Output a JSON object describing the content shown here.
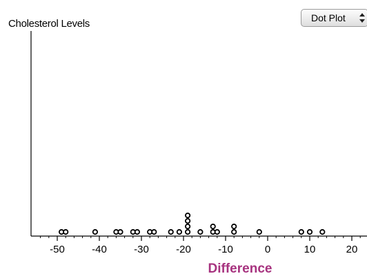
{
  "header": {
    "title": "Cholesterol Levels",
    "plot_type_select": "Dot Plot"
  },
  "chart_data": {
    "type": "dot",
    "title": "Cholesterol Levels",
    "xlabel": "Difference",
    "ylabel": "",
    "xlim": [
      -55,
      23
    ],
    "xticks": [
      -50,
      -40,
      -30,
      -20,
      -10,
      0,
      10,
      20
    ],
    "xticklabels": [
      "-50",
      "-40",
      "-30",
      "-20",
      "-10",
      "0",
      "10",
      "20"
    ],
    "minor_tick_step": 2,
    "point_color": "#ffffff",
    "point_edge_color": "#000000",
    "xlabel_color": "#a7337f",
    "values": [
      -49,
      -48,
      -41,
      -36,
      -35,
      -32,
      -31,
      -28,
      -27,
      -23,
      -21,
      -19,
      -19,
      -19,
      -19,
      -16,
      -13,
      -13,
      -12,
      -8,
      -8,
      -2,
      8,
      10,
      13
    ]
  }
}
